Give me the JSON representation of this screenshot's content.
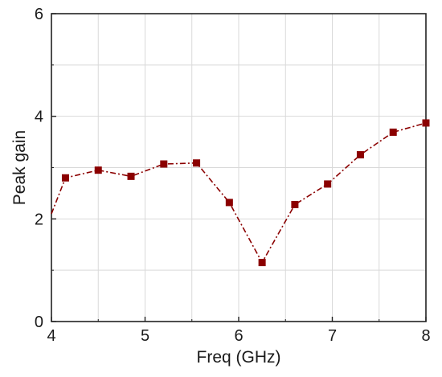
{
  "chart_data": {
    "type": "line",
    "title": "",
    "xlabel": "Freq (GHz)",
    "ylabel": "Peak gain",
    "xlim": [
      4,
      8
    ],
    "ylim": [
      0,
      6
    ],
    "x_ticks": [
      4,
      5,
      6,
      7,
      8
    ],
    "y_ticks": [
      0,
      2,
      4,
      6
    ],
    "grid": true,
    "legend": "none",
    "series": [
      {
        "color": "#8b0000",
        "line_style": "dash-dot",
        "marker": "square",
        "points": [
          {
            "x": 4.0,
            "y": 2.1
          },
          {
            "x": 4.15,
            "y": 2.8
          },
          {
            "x": 4.5,
            "y": 2.95
          },
          {
            "x": 4.85,
            "y": 2.83
          },
          {
            "x": 5.2,
            "y": 3.07
          },
          {
            "x": 5.55,
            "y": 3.09
          },
          {
            "x": 5.9,
            "y": 2.32
          },
          {
            "x": 6.25,
            "y": 1.15
          },
          {
            "x": 6.6,
            "y": 2.28
          },
          {
            "x": 6.95,
            "y": 2.68
          },
          {
            "x": 7.3,
            "y": 3.25
          },
          {
            "x": 7.65,
            "y": 3.69
          },
          {
            "x": 8.0,
            "y": 3.87
          }
        ]
      }
    ]
  }
}
